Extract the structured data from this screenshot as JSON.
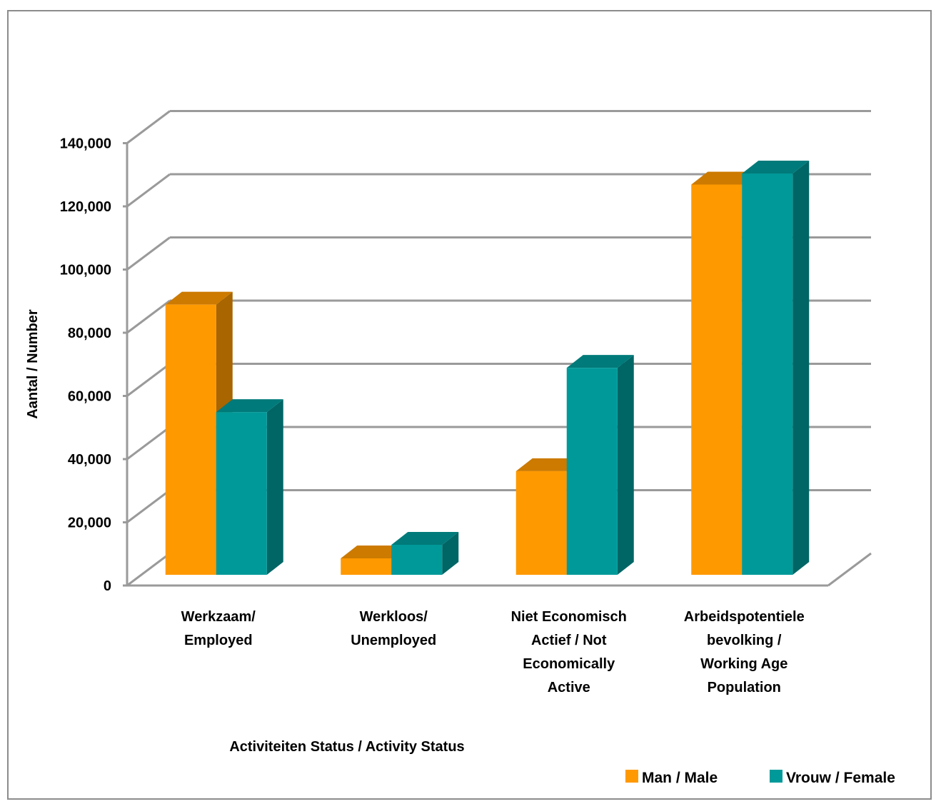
{
  "chart_data": {
    "type": "bar",
    "title": "",
    "xlabel": "Activiteiten Status / Activity Status",
    "ylabel": "Aantal / Number",
    "ylim": [
      0,
      140000
    ],
    "yticks": [
      "0",
      "20,000",
      "40,000",
      "60,000",
      "80,000",
      "100,000",
      "120,000",
      "140,000"
    ],
    "categories": [
      [
        "Werkzaam/",
        "Employed"
      ],
      [
        "Werkloos/",
        "Unemployed"
      ],
      [
        "Niet Economisch",
        "Actief / Not",
        "Economically",
        "Active"
      ],
      [
        "Arbeidspotentiele",
        "bevolking /",
        "Working Age",
        "Population"
      ]
    ],
    "series": [
      {
        "name": "Man / Male",
        "values": [
          85500,
          5200,
          32800,
          123500
        ],
        "color": "#ff9900"
      },
      {
        "name": "Vrouw / Female",
        "values": [
          51500,
          9500,
          65500,
          127000
        ],
        "color": "#009999"
      }
    ],
    "grid": true,
    "legend_position": "bottom-right",
    "style": "3d-clustered-column"
  }
}
